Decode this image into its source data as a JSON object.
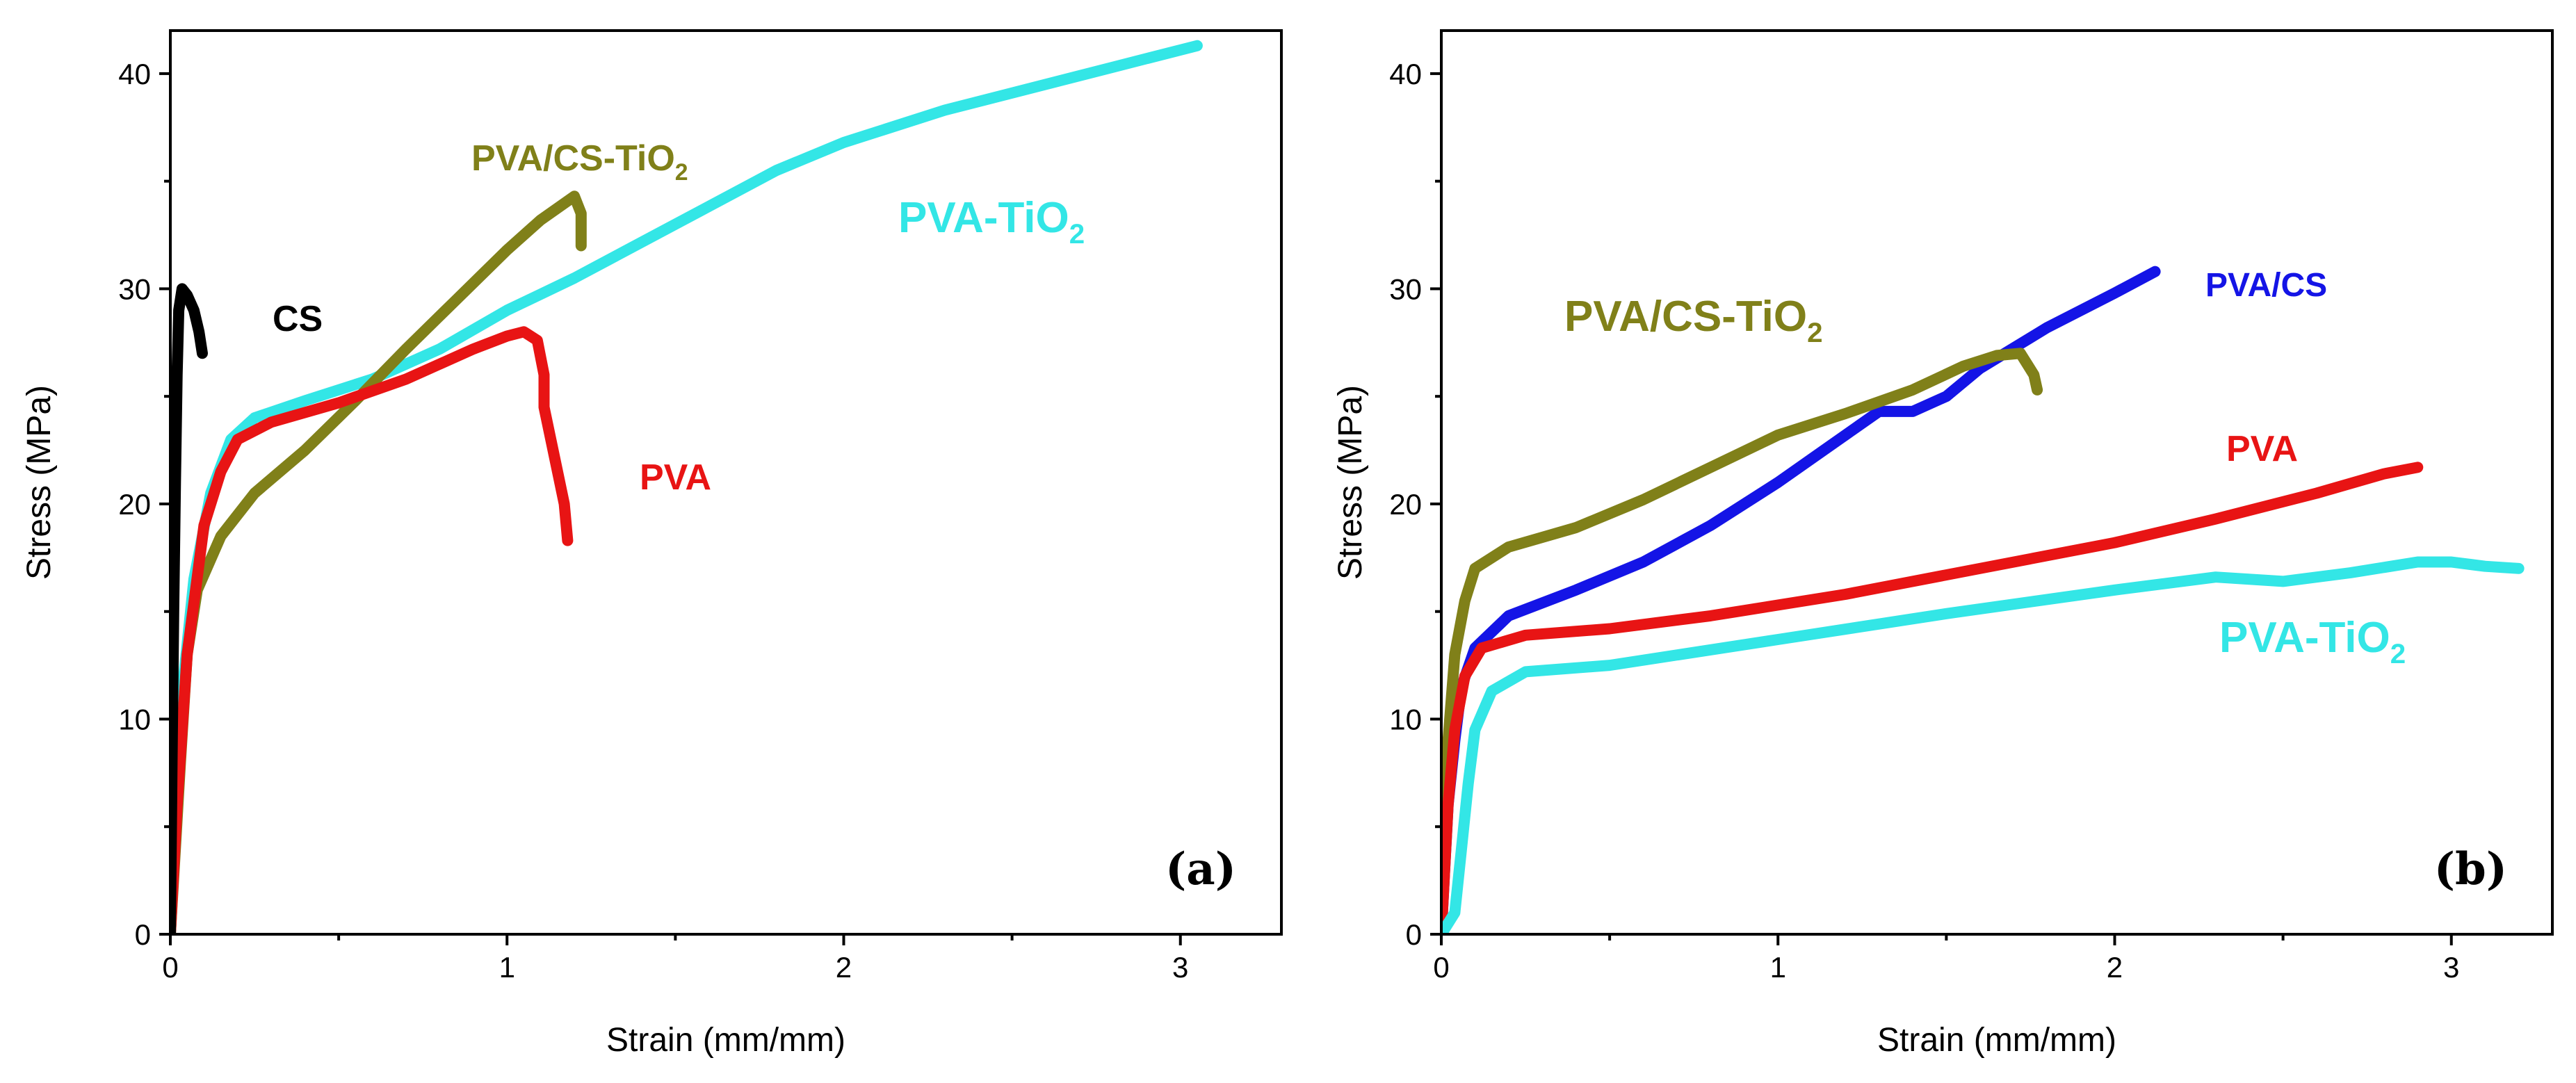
{
  "chart_data": [
    {
      "type": "line",
      "panel_label": "(a)",
      "xlabel": "Strain (mm/mm)",
      "ylabel": "Stress (MPa)",
      "xlim": [
        0,
        3.3
      ],
      "ylim": [
        0,
        42
      ],
      "xticks": [
        0,
        1,
        2,
        3
      ],
      "yticks": [
        0,
        10,
        20,
        30,
        40
      ],
      "xtick_labels": [
        "0",
        "1",
        "2",
        "3"
      ],
      "ytick_labels": [
        "0",
        "10",
        "20",
        "30",
        "40"
      ],
      "grid": false,
      "series": [
        {
          "name": "PVA-TiO2",
          "label_main": "PVA-TiO",
          "label_sub": "2",
          "color": "#33e6e6",
          "points": [
            [
              0,
              0
            ],
            [
              0.02,
              6
            ],
            [
              0.04,
              12
            ],
            [
              0.07,
              16.5
            ],
            [
              0.12,
              20.5
            ],
            [
              0.18,
              23
            ],
            [
              0.25,
              24
            ],
            [
              0.4,
              24.8
            ],
            [
              0.6,
              25.8
            ],
            [
              0.8,
              27.2
            ],
            [
              1.0,
              29
            ],
            [
              1.2,
              30.5
            ],
            [
              1.5,
              33
            ],
            [
              1.8,
              35.5
            ],
            [
              2.0,
              36.8
            ],
            [
              2.3,
              38.3
            ],
            [
              2.6,
              39.5
            ],
            [
              2.8,
              40.3
            ],
            [
              3.05,
              41.3
            ]
          ]
        },
        {
          "name": "PVA/CS-TiO2",
          "label_main": "PVA/CS-TiO",
          "label_sub": "2",
          "color": "#808019",
          "points": [
            [
              0,
              0
            ],
            [
              0.03,
              8
            ],
            [
              0.05,
              13
            ],
            [
              0.08,
              16
            ],
            [
              0.15,
              18.5
            ],
            [
              0.25,
              20.5
            ],
            [
              0.4,
              22.5
            ],
            [
              0.55,
              24.8
            ],
            [
              0.7,
              27.2
            ],
            [
              0.85,
              29.5
            ],
            [
              1.0,
              31.8
            ],
            [
              1.1,
              33.2
            ],
            [
              1.2,
              34.3
            ],
            [
              1.22,
              33.5
            ],
            [
              1.22,
              32
            ]
          ]
        },
        {
          "name": "PVA",
          "label_main": "PVA",
          "label_sub": "",
          "color": "#e81414",
          "points": [
            [
              0,
              0
            ],
            [
              0.02,
              6
            ],
            [
              0.05,
              13
            ],
            [
              0.1,
              19
            ],
            [
              0.15,
              21.5
            ],
            [
              0.2,
              23
            ],
            [
              0.3,
              23.8
            ],
            [
              0.5,
              24.7
            ],
            [
              0.7,
              25.8
            ],
            [
              0.9,
              27.2
            ],
            [
              1.0,
              27.8
            ],
            [
              1.05,
              28
            ],
            [
              1.09,
              27.6
            ],
            [
              1.11,
              26
            ],
            [
              1.11,
              24.5
            ],
            [
              1.13,
              23
            ],
            [
              1.15,
              21.5
            ],
            [
              1.17,
              20
            ],
            [
              1.18,
              18.3
            ]
          ]
        },
        {
          "name": "CS",
          "label_main": "CS",
          "label_sub": "",
          "color": "#000000",
          "points": [
            [
              0,
              0
            ],
            [
              0.005,
              8
            ],
            [
              0.01,
              15
            ],
            [
              0.015,
              21
            ],
            [
              0.02,
              26
            ],
            [
              0.025,
              29
            ],
            [
              0.035,
              30
            ],
            [
              0.05,
              29.7
            ],
            [
              0.07,
              29
            ],
            [
              0.085,
              28
            ],
            [
              0.095,
              27
            ]
          ]
        }
      ]
    },
    {
      "type": "line",
      "panel_label": "(b)",
      "xlabel": "Strain (mm/mm)",
      "ylabel": "Stress (MPa)",
      "xlim": [
        0,
        3.3
      ],
      "ylim": [
        0,
        42
      ],
      "xticks": [
        0,
        1,
        2,
        3
      ],
      "yticks": [
        0,
        10,
        20,
        30,
        40
      ],
      "xtick_labels": [
        "0",
        "1",
        "2",
        "3"
      ],
      "ytick_labels": [
        "0",
        "10",
        "20",
        "30",
        "40"
      ],
      "grid": false,
      "series": [
        {
          "name": "PVA/CS",
          "label_main": "PVA/CS",
          "label_sub": "",
          "color": "#1414e6",
          "points": [
            [
              0,
              0
            ],
            [
              0.01,
              3
            ],
            [
              0.02,
              6
            ],
            [
              0.04,
              9
            ],
            [
              0.06,
              11.5
            ],
            [
              0.1,
              13.3
            ],
            [
              0.2,
              14.8
            ],
            [
              0.4,
              16
            ],
            [
              0.6,
              17.3
            ],
            [
              0.8,
              19
            ],
            [
              1.0,
              21
            ],
            [
              1.2,
              23.2
            ],
            [
              1.3,
              24.3
            ],
            [
              1.4,
              24.3
            ],
            [
              1.5,
              25
            ],
            [
              1.6,
              26.3
            ],
            [
              1.8,
              28.2
            ],
            [
              2.0,
              29.8
            ],
            [
              2.12,
              30.8
            ]
          ]
        },
        {
          "name": "PVA/CS-TiO2",
          "label_main": "PVA/CS-TiO",
          "label_sub": "2",
          "color": "#808019",
          "points": [
            [
              0,
              0
            ],
            [
              0.01,
              4
            ],
            [
              0.02,
              9
            ],
            [
              0.04,
              13
            ],
            [
              0.07,
              15.5
            ],
            [
              0.1,
              17
            ],
            [
              0.2,
              18
            ],
            [
              0.4,
              18.9
            ],
            [
              0.6,
              20.2
            ],
            [
              0.8,
              21.7
            ],
            [
              1.0,
              23.2
            ],
            [
              1.2,
              24.2
            ],
            [
              1.4,
              25.3
            ],
            [
              1.55,
              26.4
            ],
            [
              1.65,
              26.9
            ],
            [
              1.72,
              27
            ],
            [
              1.76,
              26
            ],
            [
              1.77,
              25.3
            ]
          ]
        },
        {
          "name": "PVA",
          "label_main": "PVA",
          "label_sub": "",
          "color": "#e81414",
          "points": [
            [
              0,
              0
            ],
            [
              0.01,
              3
            ],
            [
              0.02,
              6
            ],
            [
              0.04,
              9.5
            ],
            [
              0.07,
              12
            ],
            [
              0.12,
              13.3
            ],
            [
              0.25,
              13.9
            ],
            [
              0.5,
              14.2
            ],
            [
              0.8,
              14.8
            ],
            [
              1.2,
              15.8
            ],
            [
              1.6,
              17
            ],
            [
              2.0,
              18.2
            ],
            [
              2.3,
              19.3
            ],
            [
              2.6,
              20.5
            ],
            [
              2.8,
              21.4
            ],
            [
              2.9,
              21.7
            ]
          ]
        },
        {
          "name": "PVA-TiO2",
          "label_main": "PVA-TiO",
          "label_sub": "2",
          "color": "#33e6e6",
          "points": [
            [
              0,
              0
            ],
            [
              0.04,
              1
            ],
            [
              0.06,
              4
            ],
            [
              0.08,
              7
            ],
            [
              0.1,
              9.5
            ],
            [
              0.15,
              11.3
            ],
            [
              0.25,
              12.2
            ],
            [
              0.5,
              12.5
            ],
            [
              1.0,
              13.7
            ],
            [
              1.5,
              14.9
            ],
            [
              2.0,
              16
            ],
            [
              2.3,
              16.6
            ],
            [
              2.5,
              16.4
            ],
            [
              2.7,
              16.8
            ],
            [
              2.9,
              17.3
            ],
            [
              3.0,
              17.3
            ],
            [
              3.1,
              17.1
            ],
            [
              3.2,
              17
            ]
          ]
        }
      ]
    }
  ]
}
